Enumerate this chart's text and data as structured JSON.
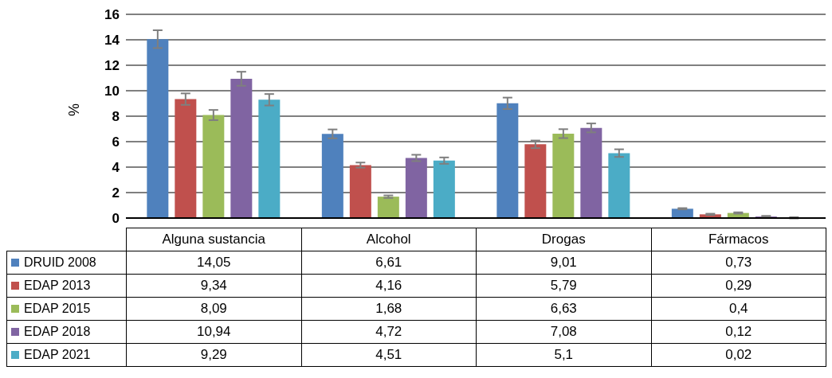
{
  "chart_data": {
    "type": "bar",
    "ylabel": "%",
    "categories": [
      "Alguna sustancia",
      "Alcohol",
      "Drogas",
      "Fármacos"
    ],
    "series": [
      {
        "name": "DRUID 2008",
        "color": "#4f81bd",
        "values": [
          14.05,
          6.61,
          9.01,
          0.73
        ],
        "value_labels": [
          "14,05",
          "6,61",
          "9,01",
          "0,73"
        ],
        "errors": [
          0.7,
          0.35,
          0.45,
          0.05
        ]
      },
      {
        "name": "EDAP 2013",
        "color": "#c0504d",
        "values": [
          9.34,
          4.16,
          5.79,
          0.29
        ],
        "value_labels": [
          "9,34",
          "4,16",
          "5,79",
          "0,29"
        ],
        "errors": [
          0.45,
          0.2,
          0.3,
          0.05
        ]
      },
      {
        "name": "EDAP 2015",
        "color": "#9bbb59",
        "values": [
          8.09,
          1.68,
          6.63,
          0.4
        ],
        "value_labels": [
          "8,09",
          "1,68",
          "6,63",
          "0,4"
        ],
        "errors": [
          0.4,
          0.1,
          0.35,
          0.05
        ]
      },
      {
        "name": "EDAP 2018",
        "color": "#8064a2",
        "values": [
          10.94,
          4.72,
          7.08,
          0.12
        ],
        "value_labels": [
          "10,94",
          "4,72",
          "7,08",
          "0,12"
        ],
        "errors": [
          0.55,
          0.25,
          0.35,
          0.05
        ]
      },
      {
        "name": "EDAP 2021",
        "color": "#4bacc6",
        "values": [
          9.29,
          4.51,
          5.1,
          0.02
        ],
        "value_labels": [
          "9,29",
          "4,51",
          "5,1",
          "0,02"
        ],
        "errors": [
          0.45,
          0.25,
          0.3,
          0.05
        ]
      }
    ],
    "ylim": [
      0,
      16
    ],
    "yticks": [
      0,
      2,
      4,
      6,
      8,
      10,
      12,
      14,
      16
    ],
    "grid": "y",
    "legend": "bottom"
  }
}
